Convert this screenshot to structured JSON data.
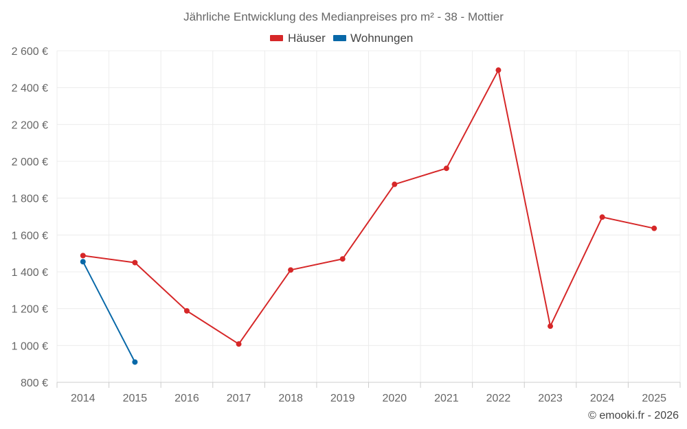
{
  "chart_data": {
    "type": "line",
    "title": "Jährliche Entwicklung des Medianpreises pro m² - 38 - Mottier",
    "categories": [
      "2014",
      "2015",
      "2016",
      "2017",
      "2018",
      "2019",
      "2020",
      "2021",
      "2022",
      "2023",
      "2024",
      "2025"
    ],
    "yticks": [
      800,
      1000,
      1200,
      1400,
      1600,
      1800,
      2000,
      2200,
      2400,
      2600
    ],
    "ytick_labels": [
      "800 €",
      "1 000 €",
      "1 200 €",
      "1 400 €",
      "1 600 €",
      "1 800 €",
      "2 000 €",
      "2 200 €",
      "2 400 €",
      "2 600 €"
    ],
    "ylim": [
      800,
      2600
    ],
    "grid": true,
    "legend_position": "top-center",
    "series": [
      {
        "name": "Häuser",
        "color": "#d62728",
        "values": [
          1488,
          1450,
          1188,
          1008,
          1410,
          1470,
          1875,
          1962,
          2495,
          1105,
          1697,
          1636
        ]
      },
      {
        "name": "Wohnungen",
        "color": "#0868a8",
        "values": [
          1455,
          910,
          null,
          null,
          null,
          null,
          null,
          null,
          null,
          null,
          null,
          null
        ]
      }
    ],
    "credit": "© emooki.fr - 2026"
  }
}
